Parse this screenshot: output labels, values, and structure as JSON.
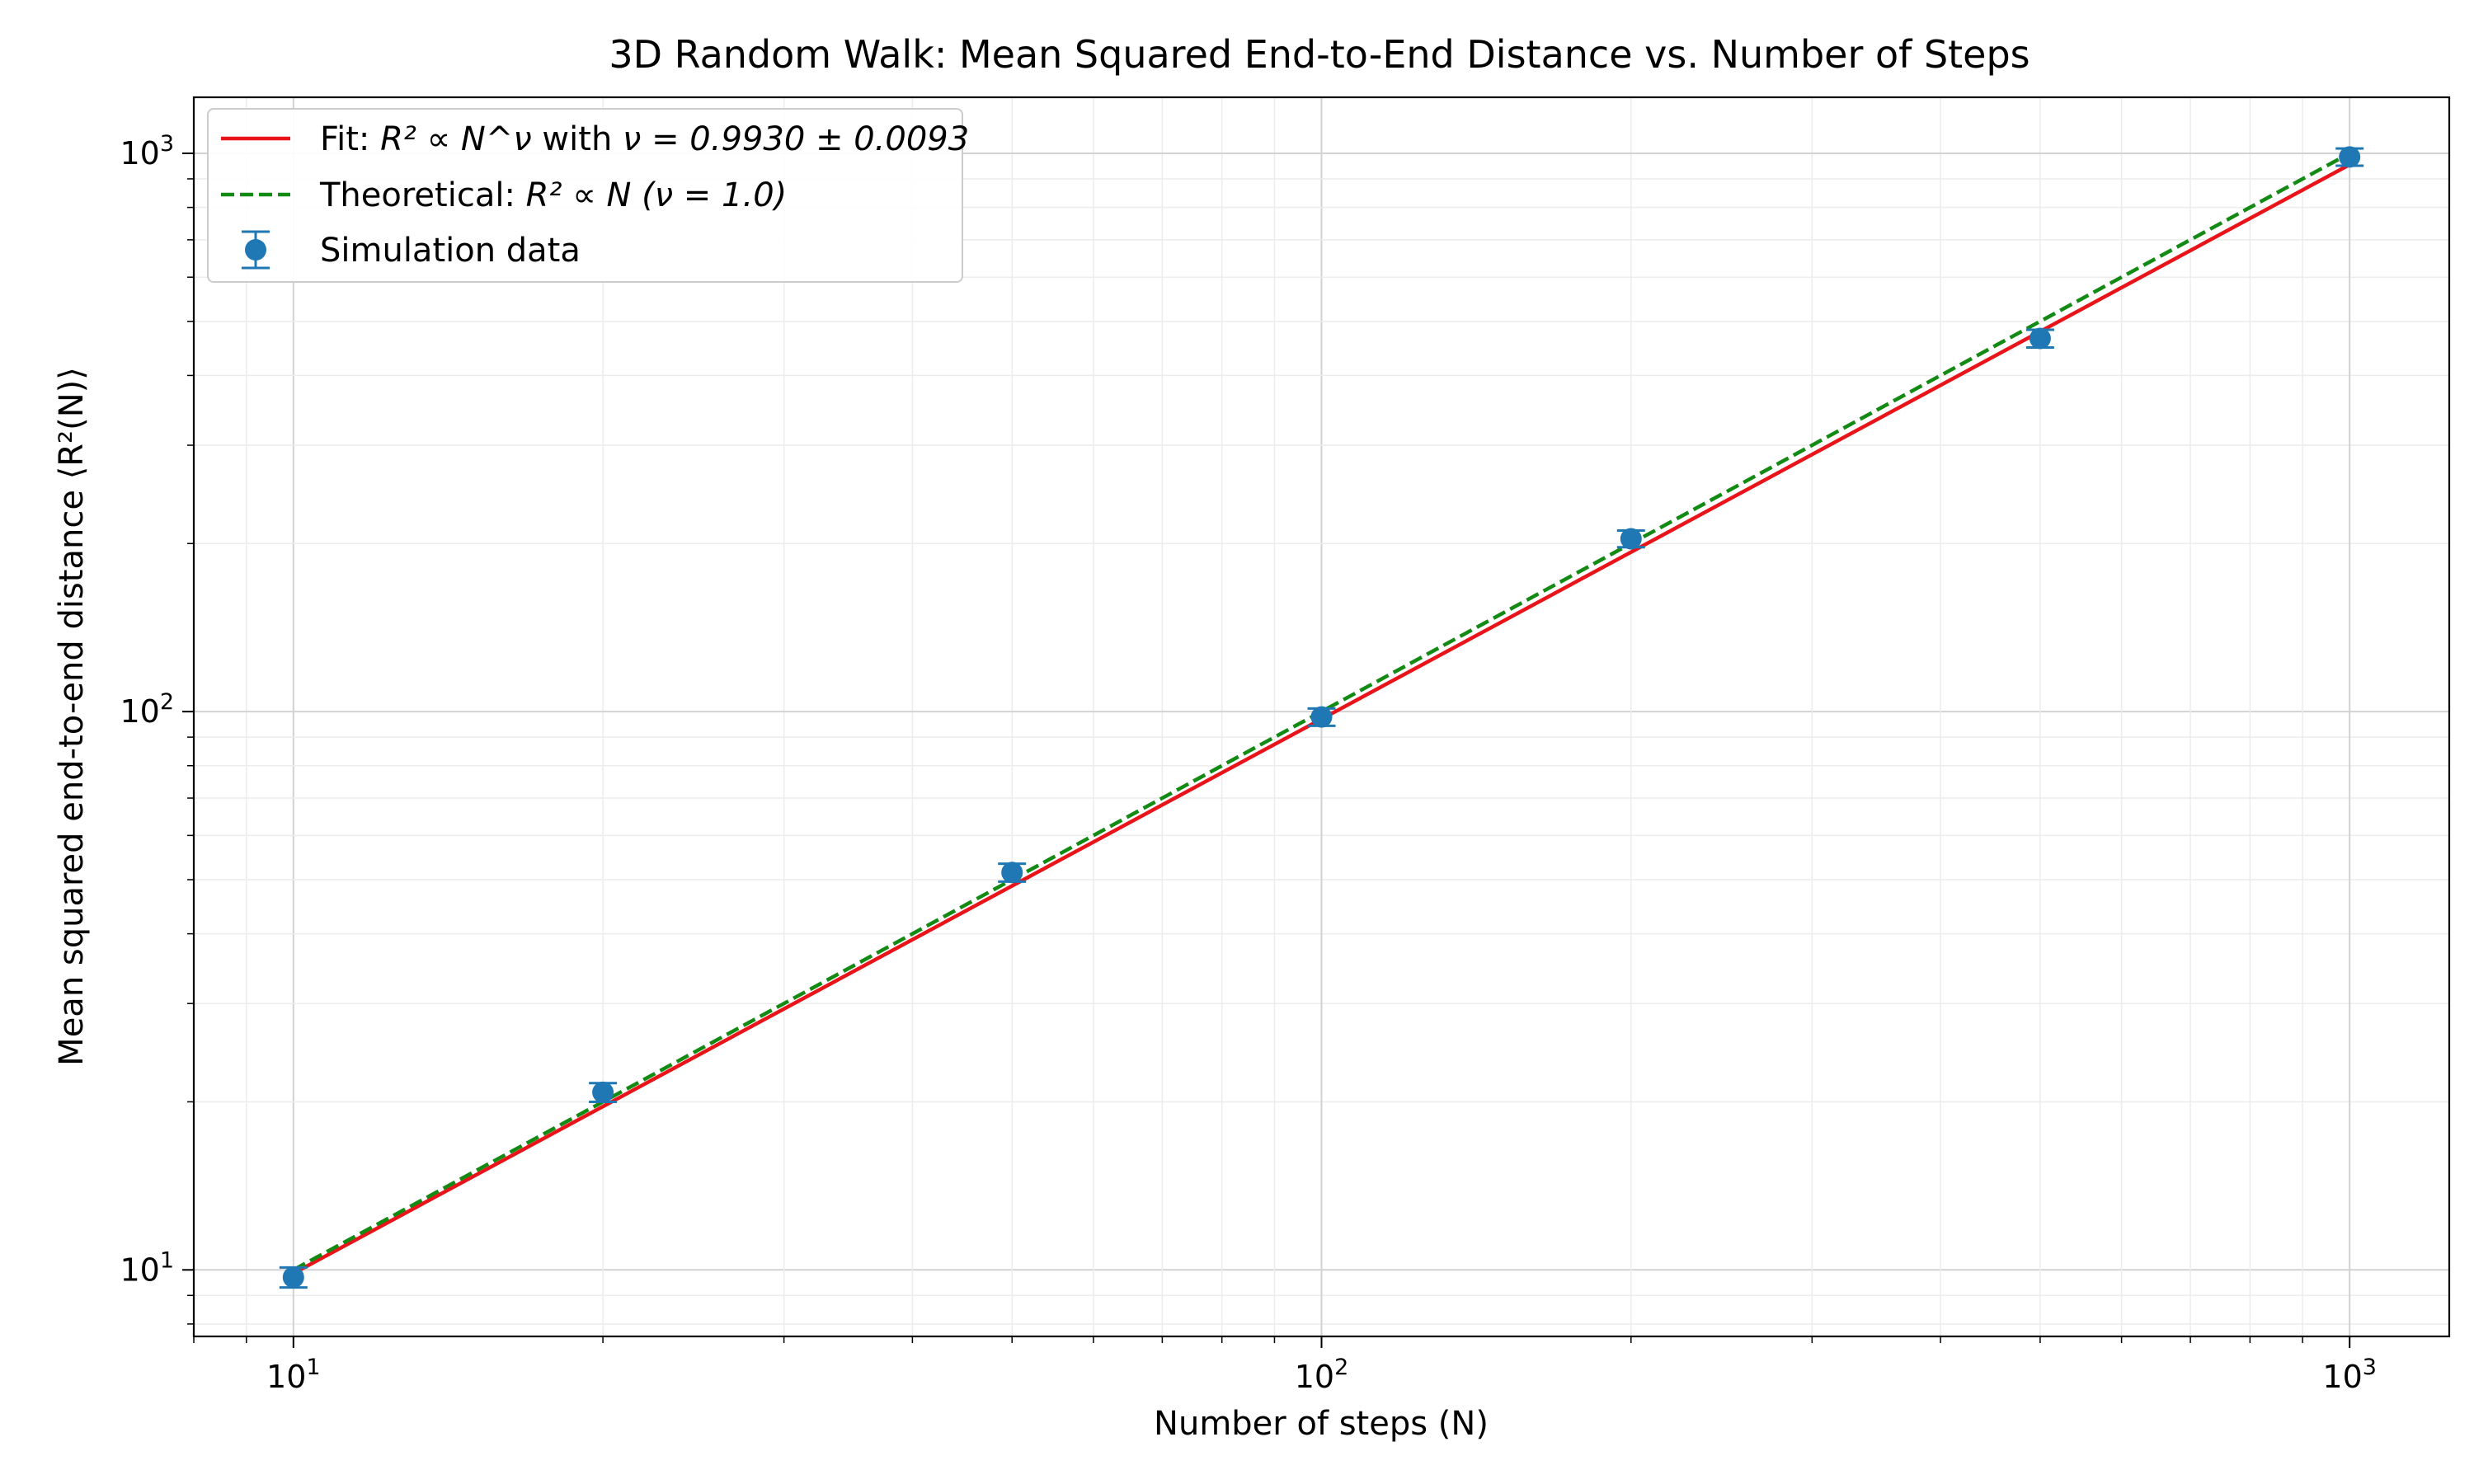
{
  "chart_data": {
    "type": "scatter",
    "title": "3D Random Walk: Mean Squared End-to-End Distance vs. Number of Steps",
    "xlabel": "Number of steps (N)",
    "ylabel": "Mean squared end-to-end distance ⟨R²(N)⟩",
    "x_scale": "log",
    "y_scale": "log",
    "xlim": [
      8.0,
      1250
    ],
    "ylim": [
      7.6,
      1260
    ],
    "grid": true,
    "legend_position": "top-left",
    "x_ticks": [
      {
        "value": 10,
        "base": "10",
        "exp": "1"
      },
      {
        "value": 100,
        "base": "10",
        "exp": "2"
      },
      {
        "value": 1000,
        "base": "10",
        "exp": "3"
      }
    ],
    "y_ticks": [
      {
        "value": 10,
        "base": "10",
        "exp": "1"
      },
      {
        "value": 100,
        "base": "10",
        "exp": "2"
      },
      {
        "value": 1000,
        "base": "10",
        "exp": "3"
      }
    ],
    "series": [
      {
        "name": "Simulation data",
        "kind": "errorbar",
        "color": "#1f77b4",
        "x": [
          10,
          20,
          50,
          100,
          200,
          500,
          1000
        ],
        "y": [
          9.7,
          20.8,
          51.5,
          97.8,
          204,
          466,
          985
        ],
        "yerr": [
          0.4,
          0.8,
          1.9,
          3.5,
          7,
          17,
          35
        ]
      },
      {
        "name": "Fit: R² ∝ N^ν with ν = 0.9930 ± 0.0093",
        "kind": "line",
        "color": "#e8141a",
        "dash": "solid",
        "prefactor": 1.0016,
        "exponent": 0.993
      },
      {
        "name": "Theoretical: R² ∝ N (ν = 1.0)",
        "kind": "line",
        "color": "#138a13",
        "dash": "dashed",
        "prefactor": 1.0,
        "exponent": 1.0
      }
    ],
    "legend": [
      {
        "label_prefix": "Fit: ",
        "label_math": "R² ∝ N^ν",
        "label_mid": " with ",
        "label_math2": "ν = 0.9930 ± 0.0093",
        "series": 1
      },
      {
        "label_prefix": "Theoretical: ",
        "label_math": "R² ∝ N",
        "label_mid": " ",
        "label_math2": "(ν = 1.0)",
        "series": 2
      },
      {
        "label_prefix": "Simulation data",
        "label_math": "",
        "label_mid": "",
        "label_math2": "",
        "series": 0
      }
    ]
  }
}
